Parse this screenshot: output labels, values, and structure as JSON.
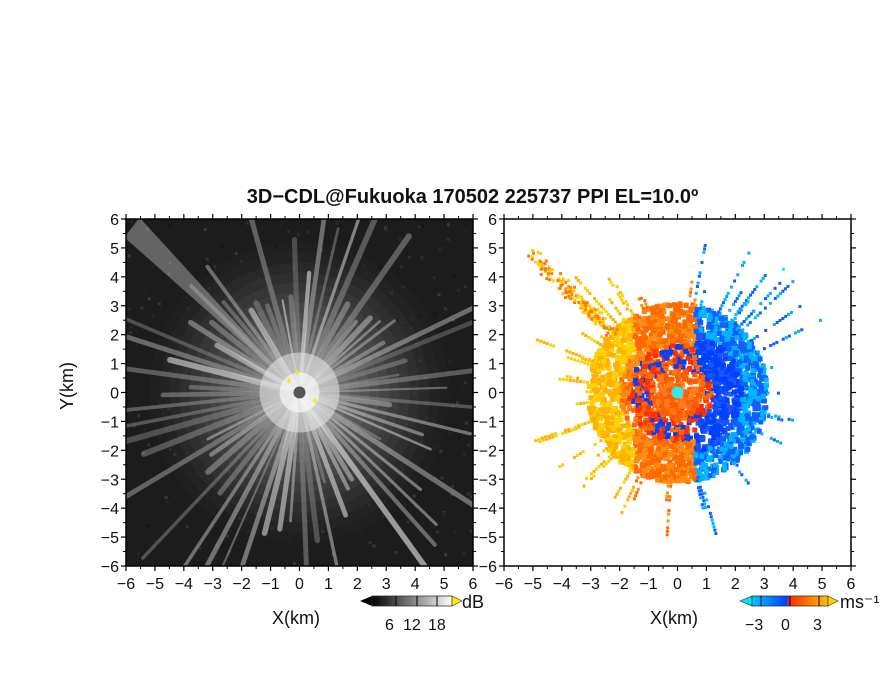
{
  "figure": {
    "title": "3D−CDL@Fukuoka 170502 225737 PPI EL=10.0º",
    "ylabel": "Y(km)"
  },
  "chart_data": [
    {
      "type": "heatmap",
      "name": "snr-ppi",
      "xlabel": "X(km)",
      "ylabel": "Y(km)",
      "xlim": [
        -6,
        6
      ],
      "ylim": [
        -6,
        6
      ],
      "ticks": [
        -6,
        -5,
        -4,
        -3,
        -2,
        -1,
        0,
        1,
        2,
        3,
        4,
        5,
        6
      ],
      "tick_labels": [
        "−6",
        "−5",
        "−4",
        "−3",
        "−2",
        "−1",
        "0",
        "1",
        "2",
        "3",
        "4",
        "5",
        "6"
      ],
      "colorbar": {
        "unit": "dB",
        "ticks": [
          "6",
          "12",
          "18"
        ],
        "colormap": "grayscale"
      },
      "rays": 72,
      "center": [
        0,
        0
      ]
    },
    {
      "type": "heatmap",
      "name": "doppler-velocity-ppi",
      "xlabel": "X(km)",
      "ylabel": "Y(km)",
      "xlim": [
        -6,
        6
      ],
      "ylim": [
        -6,
        6
      ],
      "ticks": [
        -6,
        -5,
        -4,
        -3,
        -2,
        -1,
        0,
        1,
        2,
        3,
        4,
        5,
        6
      ],
      "tick_labels": [
        "−6",
        "−5",
        "−4",
        "−3",
        "−2",
        "−1",
        "0",
        "1",
        "2",
        "3",
        "4",
        "5",
        "6"
      ],
      "colorbar": {
        "unit": "ms⁻¹",
        "ticks": [
          "−3",
          "0",
          "3"
        ],
        "colormap": [
          "#00c8ff",
          "#0050ff",
          "#ff5000",
          "#ffb400"
        ]
      },
      "center": [
        0,
        0
      ]
    }
  ],
  "colors": {
    "background": "#ffffff",
    "axis": "#000000",
    "velocity_center": "#33e8e8"
  }
}
